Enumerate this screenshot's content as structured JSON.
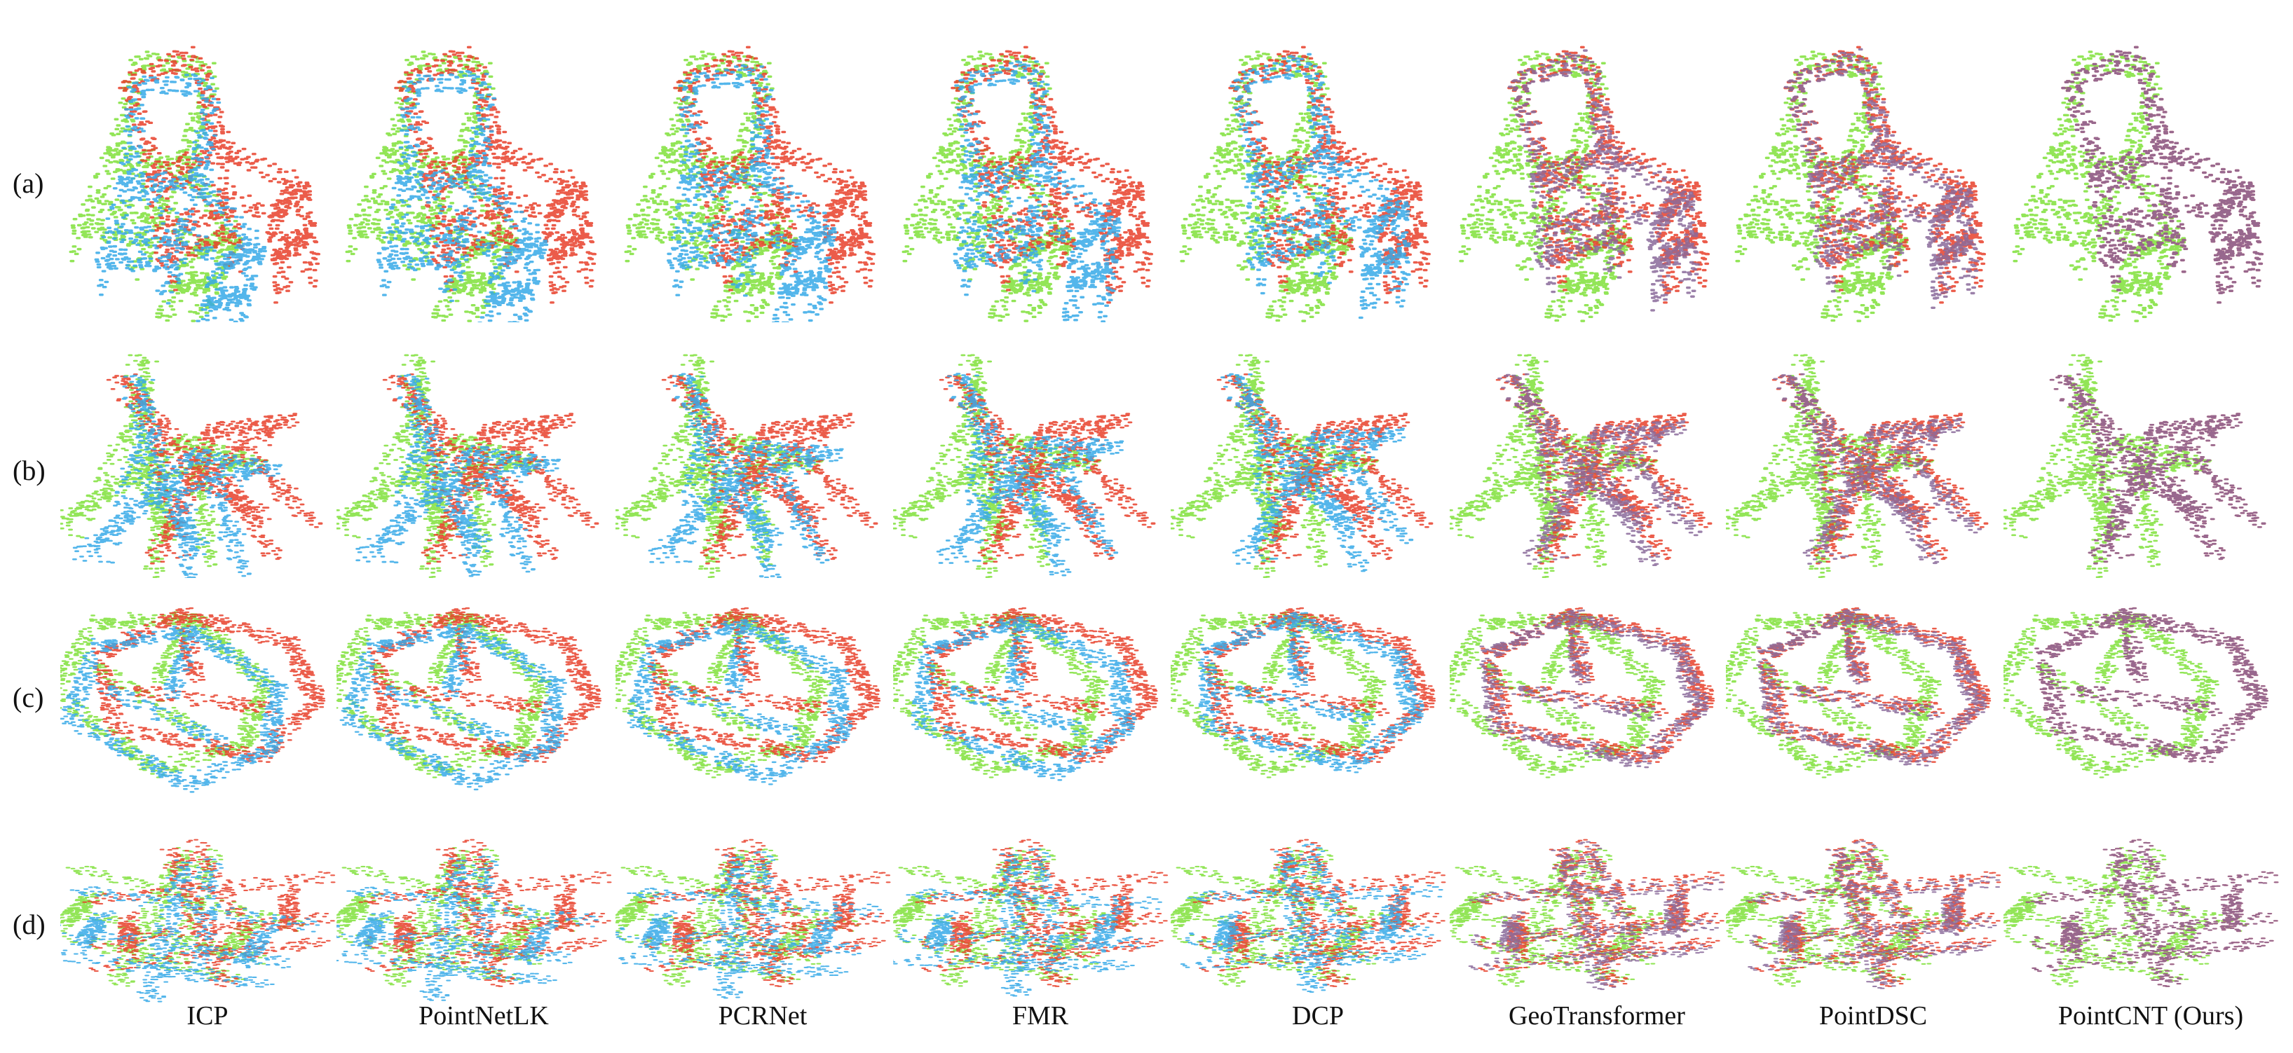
{
  "rows": [
    {
      "label": "(a)",
      "shape": "chair"
    },
    {
      "label": "(b)",
      "shape": "folding-chair"
    },
    {
      "label": "(c)",
      "shape": "sofa"
    },
    {
      "label": "(d)",
      "shape": "biplane"
    }
  ],
  "methods": [
    {
      "label": "ICP",
      "alignment": 0.0
    },
    {
      "label": "PointNetLK",
      "alignment": 0.1
    },
    {
      "label": "PCRNet",
      "alignment": 0.3
    },
    {
      "label": "FMR",
      "alignment": 0.45
    },
    {
      "label": "DCP",
      "alignment": 0.7
    },
    {
      "label": "GeoTransformer",
      "alignment": 0.85
    },
    {
      "label": "PointDSC",
      "alignment": 0.9
    },
    {
      "label": "PointCNT (Ours)",
      "alignment": 1.0
    }
  ],
  "colors": {
    "source": "#7fe03a",
    "transformed": "#36a9e8",
    "target": "#e8402a",
    "overlap": "#8a6a9a"
  }
}
